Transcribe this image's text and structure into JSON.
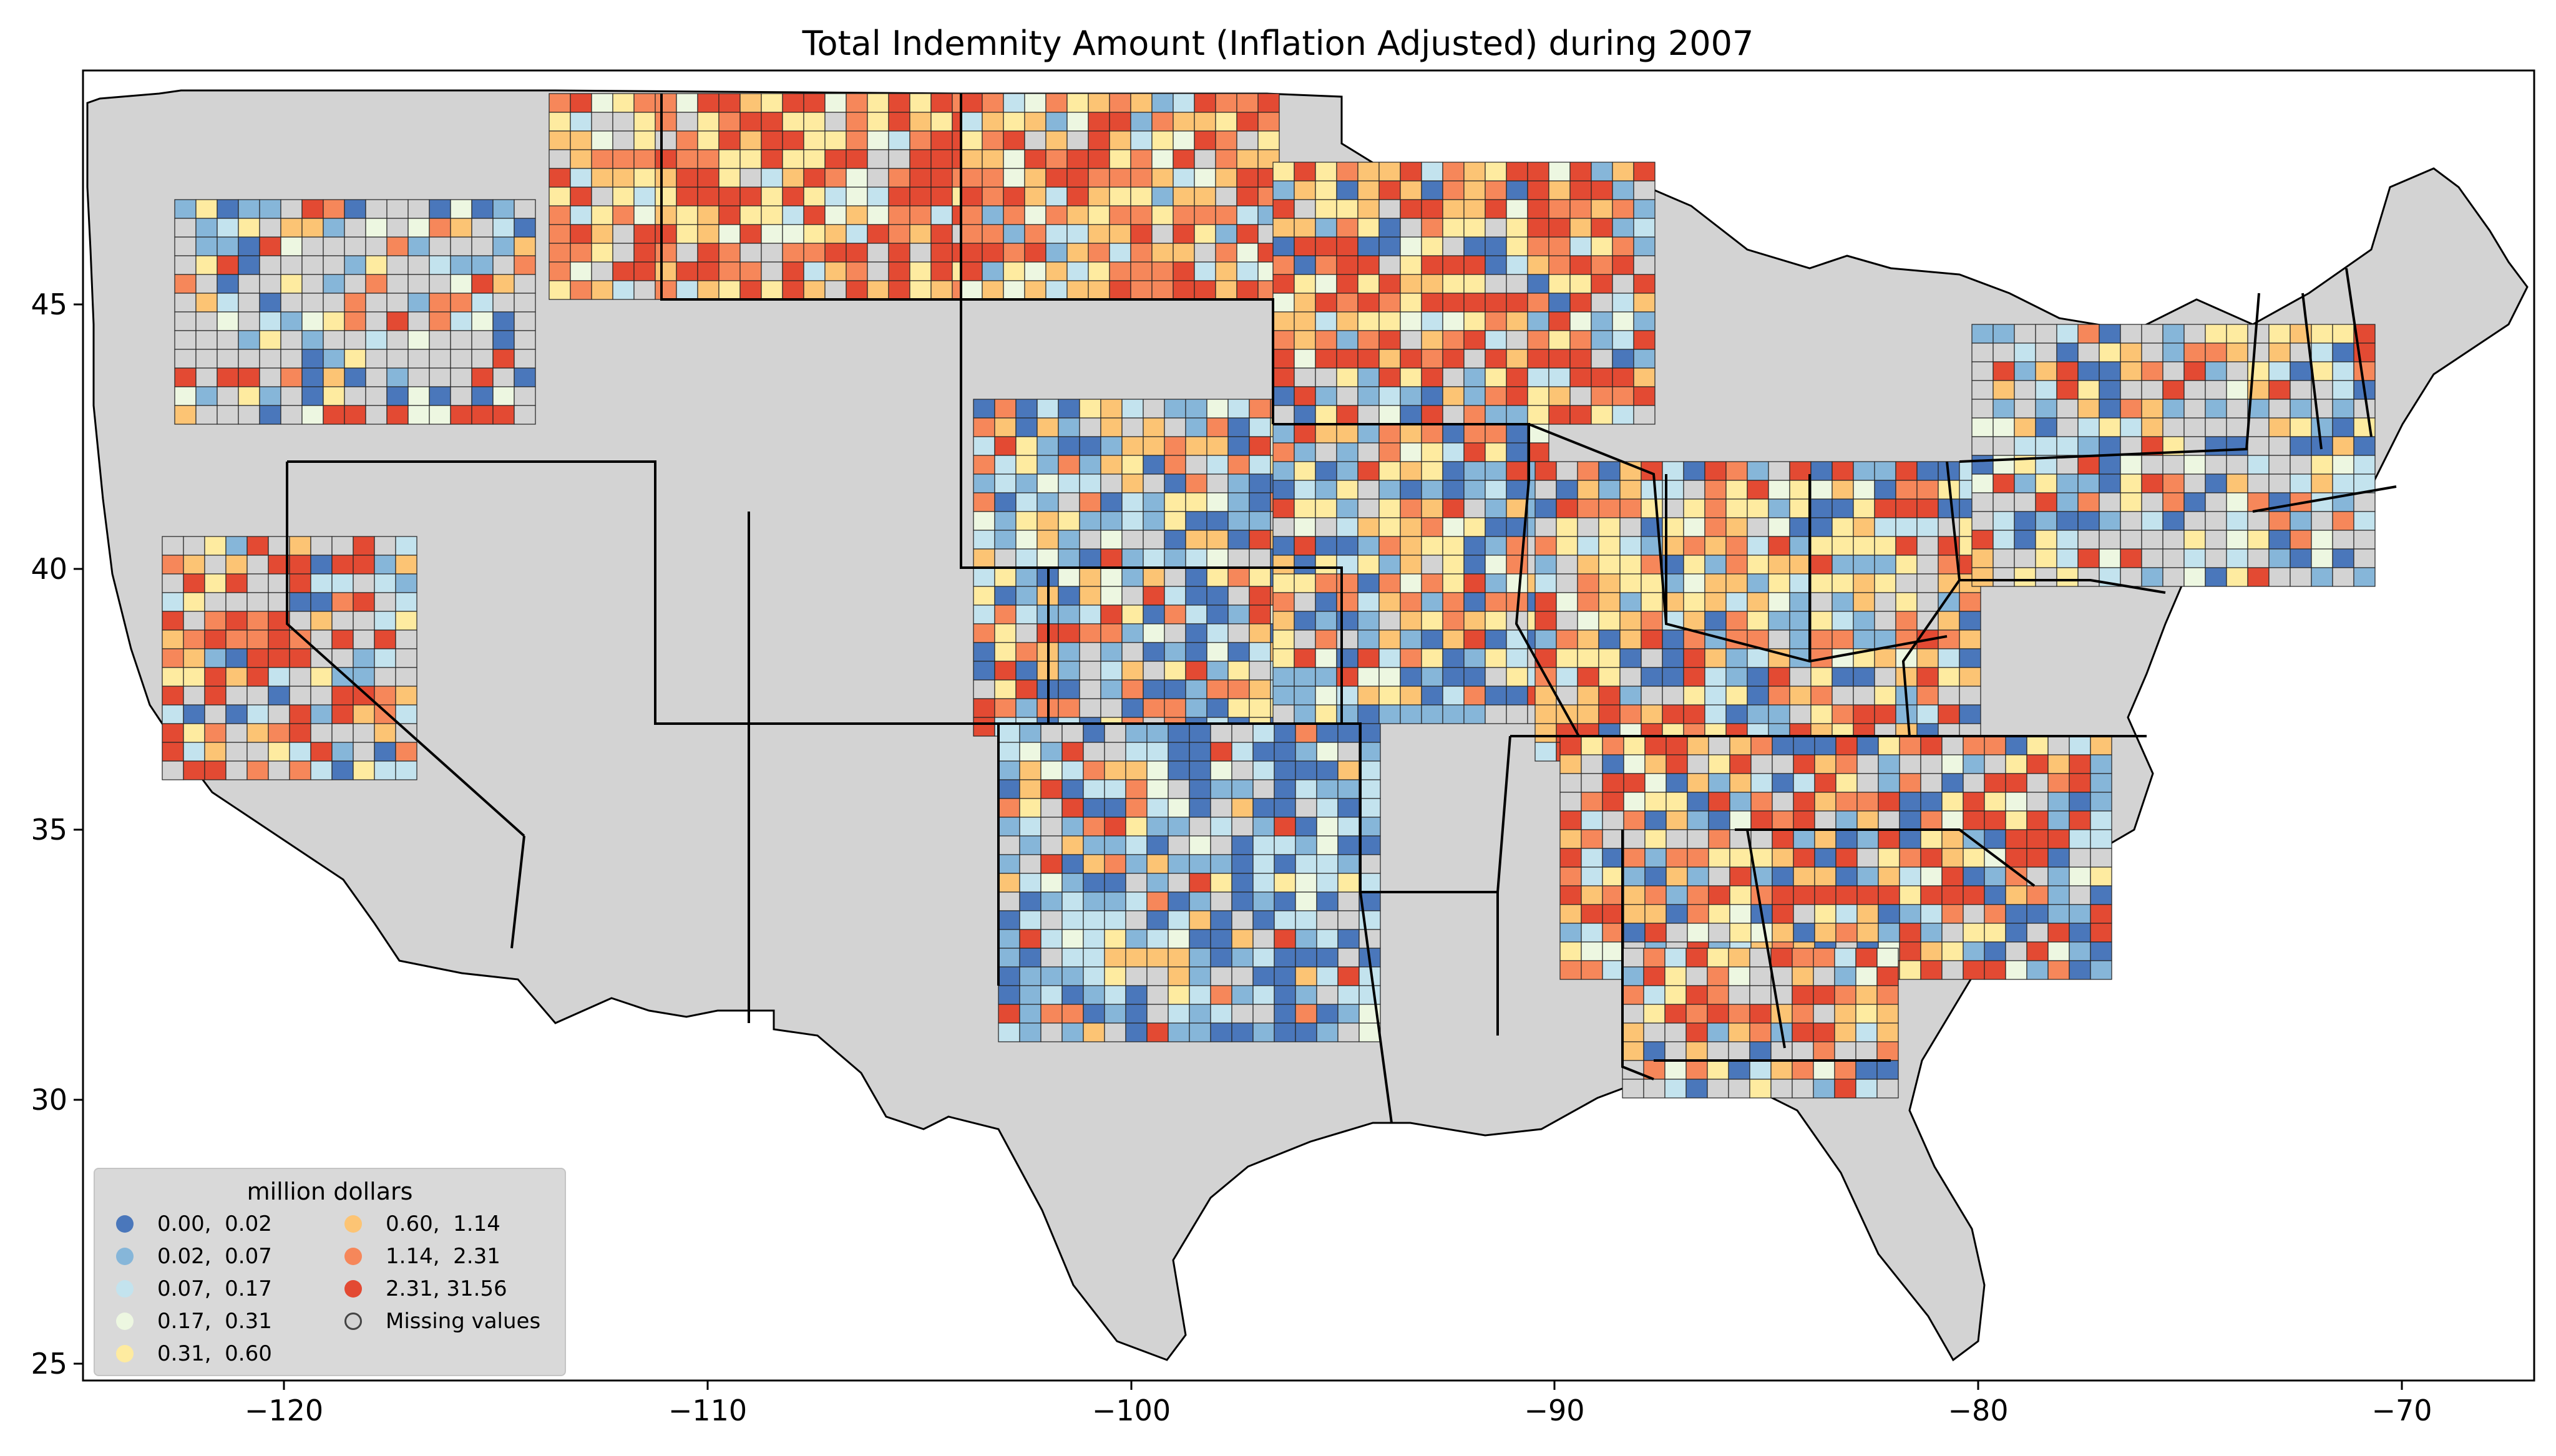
{
  "title": "Total Indemnity Amount  (Inflation Adjusted) during 2007",
  "x_ticks": [
    "−120",
    "−110",
    "−100",
    "−90",
    "−80",
    "−70"
  ],
  "y_ticks": [
    "25",
    "30",
    "35",
    "40",
    "45"
  ],
  "legend": {
    "title": "million dollars",
    "items": [
      {
        "label": "0.00,  0.02",
        "color": "#4a77bb"
      },
      {
        "label": "0.02,  0.07",
        "color": "#86b6d9"
      },
      {
        "label": "0.07,  0.17",
        "color": "#c3e3ee"
      },
      {
        "label": "0.17,  0.31",
        "color": "#edf7e1"
      },
      {
        "label": "0.31,  0.60",
        "color": "#feeba0"
      },
      {
        "label": "0.60,  1.14",
        "color": "#fcc474"
      },
      {
        "label": "1.14,  2.31",
        "color": "#f6875a"
      },
      {
        "label": "2.31, 31.56",
        "color": "#e34a33"
      },
      {
        "label": "Missing values",
        "color": "#d3d3d3"
      }
    ]
  },
  "chart_data": {
    "type": "map",
    "title": "Total Indemnity Amount  (Inflation Adjusted) during 2007",
    "xlim": [
      -124.8,
      -66.9
    ],
    "ylim": [
      24.6,
      49.4
    ],
    "x_ticks": [
      -120,
      -110,
      -100,
      -90,
      -80,
      -70
    ],
    "y_ticks": [
      25,
      30,
      35,
      40,
      45
    ],
    "classes": [
      "0.00,  0.02",
      "0.02,  0.07",
      "0.07,  0.17",
      "0.17,  0.31",
      "0.31,  0.60",
      "0.60,  1.14",
      "1.14,  2.31",
      "2.31, 31.56",
      "Missing values"
    ]
  }
}
